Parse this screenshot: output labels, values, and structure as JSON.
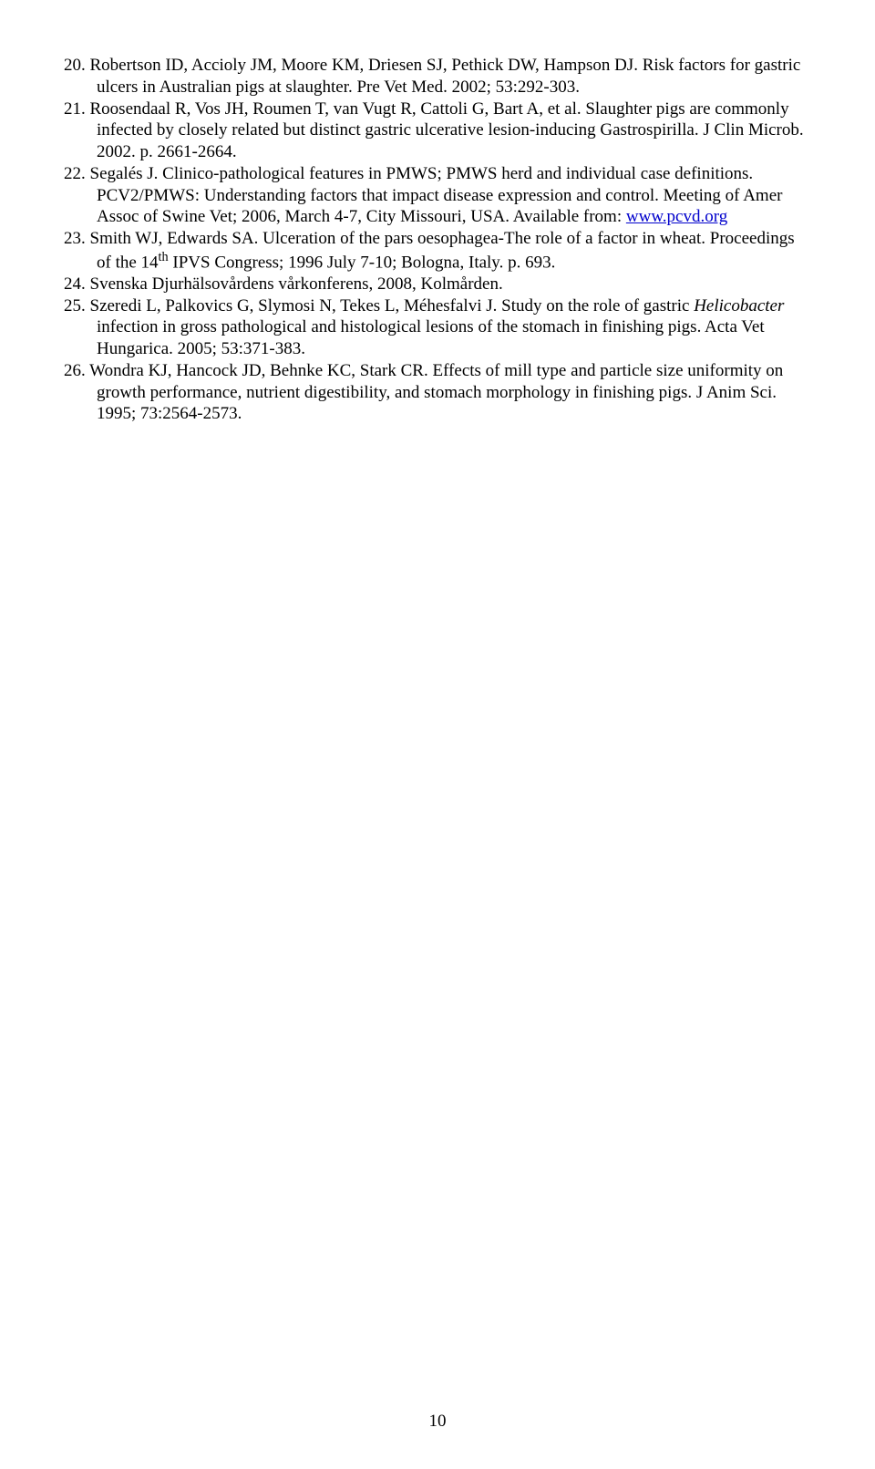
{
  "references": [
    {
      "num": "20.",
      "pre": "Robertson ID, Accioly JM, Moore KM, Driesen SJ, Pethick DW, Hampson DJ. Risk factors for gastric ulcers in Australian pigs at slaughter. Pre Vet Med. 2002; 53:292-303."
    },
    {
      "num": "21.",
      "pre": "Roosendaal R, Vos JH, Roumen T, van Vugt R, Cattoli G, Bart A, et al. Slaughter pigs are commonly infected by closely related but distinct gastric ulcerative lesion-inducing Gastrospirilla. J Clin Microb. 2002. p. 2661-2664."
    },
    {
      "num": "22.",
      "pre": "Segalés J. Clinico-pathological features in PMWS; PMWS herd and individual case definitions. PCV2/PMWS: Understanding factors that impact disease expression and control. Meeting of Amer Assoc of Swine Vet; 2006, March 4-7, City Missouri, USA. Available from: ",
      "link": "www.pcvd.org"
    },
    {
      "num": "23.",
      "pre": "Smith WJ, Edwards SA. Ulceration of the pars oesophagea-The role of a factor in wheat. Proceedings of the 14",
      "sup": "th",
      "post": " IPVS Congress; 1996 July 7-10; Bologna, Italy. p. 693."
    },
    {
      "num": "24.",
      "pre": "Svenska Djurhälsovårdens vårkonferens, 2008, Kolmården."
    },
    {
      "num": "25.",
      "pre": "Szeredi L, Palkovics G, Slymosi N, Tekes L, Méhesfalvi J. Study on the role of gastric ",
      "italic": "Helicobacter",
      "post": " infection in gross pathological and histological lesions of the stomach in finishing pigs. Acta Vet Hungarica. 2005; 53:371-383."
    },
    {
      "num": "26.",
      "pre": "Wondra KJ, Hancock JD, Behnke KC, Stark CR. Effects of mill type and particle size uniformity on growth performance, nutrient digestibility, and stomach morphology in finishing pigs. J Anim Sci. 1995; 73:2564-2573."
    }
  ],
  "page_number": "10"
}
